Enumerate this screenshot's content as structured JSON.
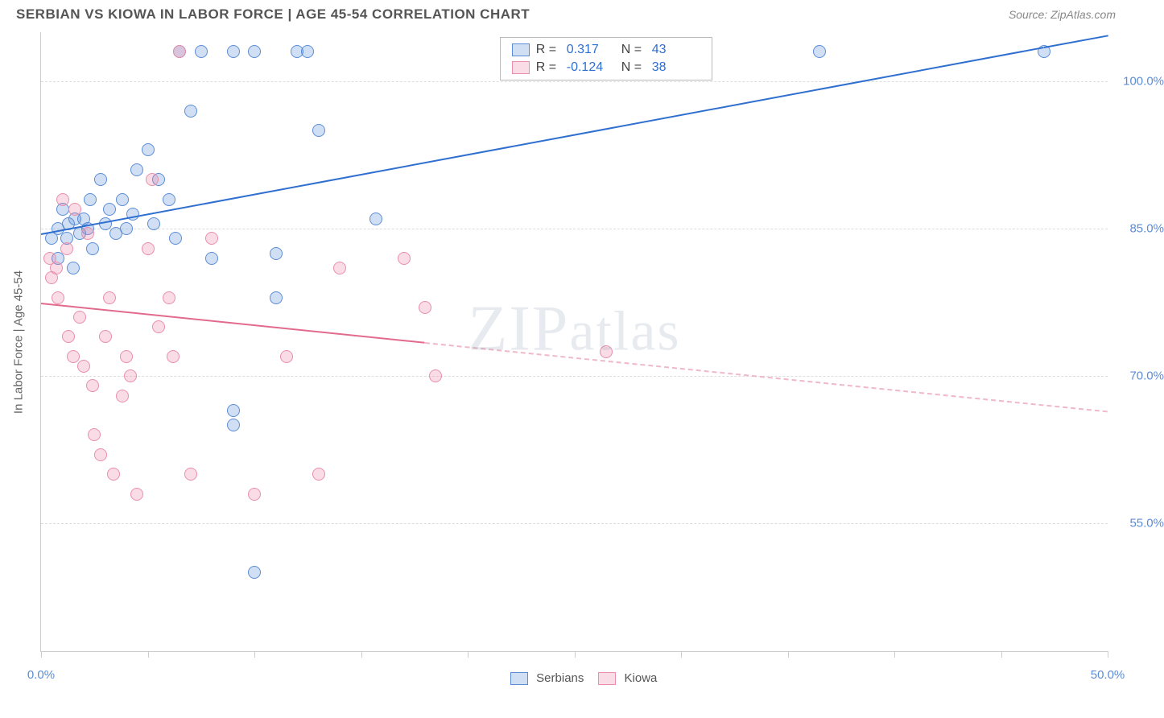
{
  "header": {
    "title": "SERBIAN VS KIOWA IN LABOR FORCE | AGE 45-54 CORRELATION CHART",
    "source": "Source: ZipAtlas.com"
  },
  "watermark": "ZIPatlas",
  "chart": {
    "type": "scatter",
    "ylabel": "In Labor Force | Age 45-54",
    "background_color": "#ffffff",
    "grid_color": "#dddddd",
    "axis_color": "#cccccc",
    "tick_label_color": "#5b8dd6",
    "label_fontsize": 15,
    "title_fontsize": 17,
    "marker_radius": 8,
    "marker_stroke_width": 1.5,
    "trend_line_width": 2,
    "x": {
      "min": 0,
      "max": 50,
      "ticks": [
        0,
        5,
        10,
        15,
        20,
        25,
        30,
        35,
        40,
        45,
        50
      ],
      "tick_labels": {
        "0": "0.0%",
        "50": "50.0%"
      }
    },
    "y": {
      "min": 42,
      "max": 105,
      "gridlines": [
        55,
        70,
        85,
        100
      ],
      "tick_labels": {
        "55": "55.0%",
        "70": "70.0%",
        "85": "85.0%",
        "100": "100.0%"
      }
    },
    "series": [
      {
        "name": "Serbians",
        "color_fill": "rgba(91,141,214,0.28)",
        "color_stroke": "#5b8dd6",
        "r_value": "0.317",
        "n_value": "43",
        "trend": {
          "x1": 0,
          "y1": 84.5,
          "x2": 47,
          "y2": 103.5,
          "extend_x2": 50,
          "extend_y2": 104.7,
          "solid_color": "#2f6fd0"
        },
        "points": [
          [
            0.5,
            84
          ],
          [
            0.8,
            85
          ],
          [
            0.8,
            82
          ],
          [
            1.0,
            87
          ],
          [
            1.2,
            84
          ],
          [
            1.3,
            85.5
          ],
          [
            1.5,
            81
          ],
          [
            1.6,
            86
          ],
          [
            1.8,
            84.5
          ],
          [
            2.0,
            86
          ],
          [
            2.2,
            85
          ],
          [
            2.3,
            88
          ],
          [
            2.4,
            83
          ],
          [
            2.8,
            90
          ],
          [
            3.0,
            85.5
          ],
          [
            3.2,
            87
          ],
          [
            3.5,
            84.5
          ],
          [
            3.8,
            88
          ],
          [
            4.0,
            85
          ],
          [
            4.3,
            86.5
          ],
          [
            4.5,
            91
          ],
          [
            5.0,
            93
          ],
          [
            5.3,
            85.5
          ],
          [
            5.5,
            90
          ],
          [
            6.0,
            88
          ],
          [
            6.3,
            84
          ],
          [
            6.5,
            103
          ],
          [
            7.0,
            97
          ],
          [
            7.5,
            103
          ],
          [
            8.0,
            82
          ],
          [
            9.0,
            65
          ],
          [
            9.0,
            66.5
          ],
          [
            9.0,
            103
          ],
          [
            10.0,
            103
          ],
          [
            10.0,
            50
          ],
          [
            11.0,
            82.5
          ],
          [
            11.0,
            78
          ],
          [
            12.0,
            103
          ],
          [
            12.5,
            103
          ],
          [
            13.0,
            95
          ],
          [
            15.7,
            86
          ],
          [
            36.5,
            103
          ],
          [
            47.0,
            103
          ]
        ]
      },
      {
        "name": "Kiowa",
        "color_fill": "rgba(235,130,160,0.28)",
        "color_stroke": "#e98fab",
        "r_value": "-0.124",
        "n_value": "38",
        "trend": {
          "x1": 0,
          "y1": 77.5,
          "x2": 18,
          "y2": 73.5,
          "extend_x2": 50,
          "extend_y2": 66.5,
          "solid_color": "#e26b8d",
          "dash_color": "#f0b8c8"
        },
        "points": [
          [
            0.4,
            82
          ],
          [
            0.5,
            80
          ],
          [
            0.7,
            81
          ],
          [
            0.8,
            78
          ],
          [
            1.0,
            88
          ],
          [
            1.2,
            83
          ],
          [
            1.3,
            74
          ],
          [
            1.5,
            72
          ],
          [
            1.6,
            87
          ],
          [
            1.8,
            76
          ],
          [
            2.0,
            71
          ],
          [
            2.2,
            84.5
          ],
          [
            2.4,
            69
          ],
          [
            2.5,
            64
          ],
          [
            2.8,
            62
          ],
          [
            3.0,
            74
          ],
          [
            3.2,
            78
          ],
          [
            3.4,
            60
          ],
          [
            3.8,
            68
          ],
          [
            4.0,
            72
          ],
          [
            4.2,
            70
          ],
          [
            4.5,
            58
          ],
          [
            5.0,
            83
          ],
          [
            5.2,
            90
          ],
          [
            5.5,
            75
          ],
          [
            6.0,
            78
          ],
          [
            6.2,
            72
          ],
          [
            6.5,
            103
          ],
          [
            7.0,
            60
          ],
          [
            8.0,
            84
          ],
          [
            10.0,
            58
          ],
          [
            11.5,
            72
          ],
          [
            13.0,
            60
          ],
          [
            14.0,
            81
          ],
          [
            17.0,
            82
          ],
          [
            18.0,
            77
          ],
          [
            18.5,
            70
          ],
          [
            26.5,
            72.5
          ]
        ]
      }
    ],
    "legend_top": {
      "rows": [
        {
          "swatch_fill": "rgba(91,141,214,0.28)",
          "swatch_stroke": "#5b8dd6",
          "r_label": "R =",
          "r": "0.317",
          "n_label": "N =",
          "n": "43"
        },
        {
          "swatch_fill": "rgba(235,130,160,0.28)",
          "swatch_stroke": "#e98fab",
          "r_label": "R =",
          "r": "-0.124",
          "n_label": "N =",
          "n": "38"
        }
      ]
    },
    "legend_bottom": [
      {
        "swatch_fill": "rgba(91,141,214,0.28)",
        "swatch_stroke": "#5b8dd6",
        "label": "Serbians"
      },
      {
        "swatch_fill": "rgba(235,130,160,0.28)",
        "swatch_stroke": "#e98fab",
        "label": "Kiowa"
      }
    ]
  }
}
